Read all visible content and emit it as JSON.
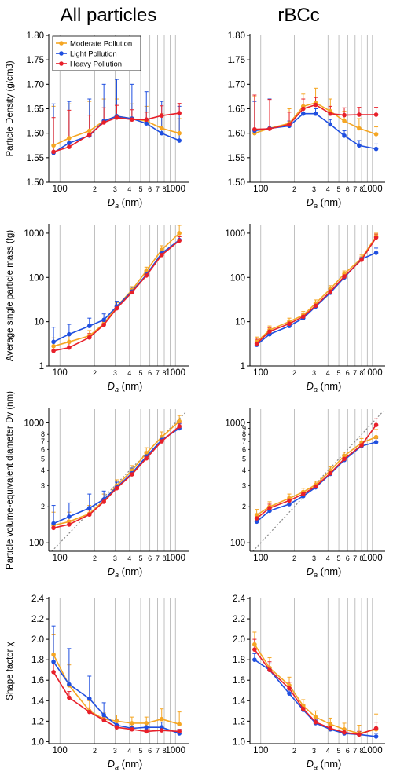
{
  "column_titles": [
    "All particles",
    "rBCc"
  ],
  "colors": {
    "Moderate Pollution": "#f5a623",
    "Light Pollution": "#1f4fe0",
    "Heavy Pollution": "#e8202a",
    "gridline": "#b0b0b0",
    "one_to_one": "#888888"
  },
  "legend": [
    "Moderate Pollution",
    "Light Pollution",
    "Heavy Pollution"
  ],
  "xlabel": "Da (nm)",
  "chart_data": [
    {
      "panel": "A1",
      "column": "All particles",
      "type": "line",
      "ylabel": "Particle Density (g/cm3)",
      "yscale": "linear",
      "ylim": [
        1.5,
        1.8
      ],
      "yticks": [
        1.5,
        1.55,
        1.6,
        1.65,
        1.7,
        1.75,
        1.8
      ],
      "xscale": "log",
      "xlim": [
        80,
        1300
      ],
      "x": [
        88,
        120,
        180,
        240,
        310,
        420,
        560,
        760,
        1080
      ],
      "legend_position": "top-left",
      "series": [
        {
          "name": "Moderate Pollution",
          "values": [
            1.575,
            1.59,
            1.605,
            1.625,
            1.635,
            1.63,
            1.625,
            1.61,
            1.6
          ],
          "err": [
            0.08,
            0.07,
            0.06,
            0.045,
            0.035,
            0.03,
            0.03,
            0.03,
            0.03
          ]
        },
        {
          "name": "Light Pollution",
          "values": [
            1.56,
            1.58,
            1.595,
            1.625,
            1.635,
            1.63,
            1.62,
            1.6,
            1.585
          ],
          "err": [
            0.1,
            0.085,
            0.075,
            0.075,
            0.075,
            0.07,
            0.065,
            0.065,
            0.07
          ]
        },
        {
          "name": "Heavy Pollution",
          "values": [
            1.562,
            1.572,
            1.597,
            1.622,
            1.632,
            1.628,
            1.628,
            1.636,
            1.641
          ],
          "err": [
            0.07,
            0.075,
            0.04,
            0.03,
            0.025,
            0.02,
            0.015,
            0.02,
            0.02
          ]
        }
      ]
    },
    {
      "panel": "B1",
      "column": "rBCc",
      "type": "line",
      "ylabel": "",
      "yscale": "linear",
      "ylim": [
        1.5,
        1.8
      ],
      "yticks": [
        1.5,
        1.55,
        1.6,
        1.65,
        1.7,
        1.75,
        1.8
      ],
      "xscale": "log",
      "xlim": [
        80,
        1300
      ],
      "x": [
        88,
        120,
        180,
        240,
        310,
        420,
        560,
        760,
        1080
      ],
      "series": [
        {
          "name": "Moderate Pollution",
          "values": [
            1.6,
            1.61,
            1.62,
            1.655,
            1.662,
            1.645,
            1.625,
            1.61,
            1.598
          ],
          "err": [
            0.075,
            0.06,
            0.03,
            0.025,
            0.03,
            0.025,
            0.02,
            0.02,
            0.015
          ]
        },
        {
          "name": "Light Pollution",
          "values": [
            1.605,
            1.61,
            1.615,
            1.64,
            1.64,
            1.618,
            1.595,
            1.575,
            1.568
          ],
          "err": [
            0.06,
            0.06,
            0.01,
            0.01,
            0.01,
            0.01,
            0.01,
            0.01,
            0.01
          ]
        },
        {
          "name": "Heavy Pollution",
          "values": [
            1.608,
            1.609,
            1.618,
            1.65,
            1.658,
            1.64,
            1.637,
            1.638,
            1.638
          ],
          "err": [
            0.07,
            0.06,
            0.025,
            0.02,
            0.015,
            0.015,
            0.015,
            0.015,
            0.015
          ]
        }
      ]
    },
    {
      "panel": "A2",
      "column": "All particles",
      "type": "line",
      "ylabel": "Average single particle mass (fg)",
      "yscale": "log",
      "ylim": [
        1,
        1500
      ],
      "yticks": [
        1,
        10,
        100,
        1000
      ],
      "xscale": "log",
      "xlim": [
        80,
        1300
      ],
      "x": [
        88,
        120,
        180,
        240,
        310,
        420,
        560,
        760,
        1080
      ],
      "series": [
        {
          "name": "Moderate Pollution",
          "values": [
            2.8,
            3.5,
            4.8,
            9,
            22,
            52,
            140,
            420,
            1000
          ],
          "err": [
            1.5,
            1.5,
            1.5,
            2,
            5,
            10,
            30,
            100,
            500
          ]
        },
        {
          "name": "Light Pollution",
          "values": [
            3.5,
            5.2,
            8,
            11,
            22,
            48,
            115,
            350,
            700
          ],
          "err": [
            4,
            3.5,
            4,
            4,
            7,
            12,
            25,
            80,
            150
          ]
        },
        {
          "name": "Heavy Pollution",
          "values": [
            2.2,
            2.6,
            4.4,
            8.5,
            20,
            46,
            110,
            320,
            680
          ],
          "err": [
            0.6,
            0.8,
            1,
            1.5,
            4,
            8,
            20,
            60,
            150
          ]
        }
      ]
    },
    {
      "panel": "B2",
      "column": "rBCc",
      "type": "line",
      "ylabel": "",
      "yscale": "log",
      "ylim": [
        1,
        1500
      ],
      "yticks": [
        1,
        10,
        100,
        1000
      ],
      "xscale": "log",
      "xlim": [
        80,
        1300
      ],
      "x": [
        92,
        120,
        180,
        240,
        310,
        420,
        560,
        800,
        1080
      ],
      "series": [
        {
          "name": "Moderate Pollution",
          "values": [
            3.5,
            6.5,
            10,
            14,
            26,
            55,
            120,
            270,
            850
          ],
          "err": [
            1,
            1.5,
            2,
            3,
            5,
            10,
            20,
            50,
            150
          ]
        },
        {
          "name": "Light Pollution",
          "values": [
            3,
            5.2,
            8,
            12,
            22,
            45,
            100,
            260,
            360
          ],
          "err": [
            0.5,
            1,
            1,
            2,
            3,
            5,
            10,
            30,
            100
          ]
        },
        {
          "name": "Heavy Pollution",
          "values": [
            3.2,
            6,
            9,
            13,
            23,
            48,
            105,
            250,
            800
          ],
          "err": [
            0.8,
            1.2,
            1.5,
            2,
            4,
            8,
            15,
            40,
            150
          ]
        }
      ]
    },
    {
      "panel": "A3",
      "column": "All particles",
      "type": "line",
      "ylabel": "Particle volume-equivalent diameter Dv (nm)",
      "yscale": "log",
      "ylim": [
        85,
        1300
      ],
      "yticks": [
        100,
        1000
      ],
      "minor_yticks": [
        2,
        3,
        4,
        5,
        6,
        7,
        8
      ],
      "xscale": "log",
      "xlim": [
        80,
        1300
      ],
      "x": [
        88,
        120,
        180,
        240,
        310,
        420,
        560,
        760,
        1080
      ],
      "reference_line": "1:1 dashed",
      "series": [
        {
          "name": "Moderate Pollution",
          "values": [
            140,
            150,
            175,
            225,
            300,
            400,
            560,
            760,
            1030
          ],
          "err": [
            40,
            30,
            30,
            30,
            35,
            40,
            60,
            80,
            120
          ]
        },
        {
          "name": "Light Pollution",
          "values": [
            145,
            165,
            195,
            230,
            290,
            380,
            525,
            720,
            900
          ],
          "err": [
            60,
            50,
            60,
            40,
            30,
            40,
            50,
            60,
            80
          ]
        },
        {
          "name": "Heavy Pollution",
          "values": [
            133,
            142,
            172,
            220,
            285,
            372,
            505,
            700,
            935
          ],
          "err": [
            10,
            12,
            15,
            15,
            15,
            20,
            25,
            40,
            60
          ]
        }
      ]
    },
    {
      "panel": "B3",
      "column": "rBCc",
      "type": "line",
      "ylabel": "",
      "yscale": "log",
      "ylim": [
        85,
        1300
      ],
      "yticks": [
        100,
        1000
      ],
      "minor_yticks": [
        2,
        3,
        4,
        5,
        6,
        7,
        8,
        9
      ],
      "xscale": "log",
      "xlim": [
        80,
        1300
      ],
      "x": [
        92,
        120,
        180,
        240,
        310,
        420,
        560,
        800,
        1080
      ],
      "reference_line": "1:1 dashed",
      "series": [
        {
          "name": "Moderate Pollution",
          "values": [
            170,
            200,
            235,
            265,
            305,
            400,
            530,
            680,
            760
          ],
          "err": [
            20,
            20,
            20,
            20,
            20,
            30,
            40,
            60,
            120
          ]
        },
        {
          "name": "Light Pollution",
          "values": [
            150,
            185,
            210,
            245,
            290,
            375,
            490,
            640,
            690
          ],
          "err": [
            10,
            15,
            15,
            15,
            15,
            20,
            30,
            40,
            50
          ]
        },
        {
          "name": "Heavy Pollution",
          "values": [
            160,
            195,
            225,
            255,
            295,
            380,
            500,
            650,
            960
          ],
          "err": [
            15,
            15,
            15,
            15,
            20,
            25,
            35,
            50,
            120
          ]
        }
      ]
    },
    {
      "panel": "A4",
      "column": "All particles",
      "type": "line",
      "ylabel": "Shape factor χ",
      "yscale": "linear",
      "ylim": [
        0.98,
        2.4
      ],
      "yticks": [
        1.0,
        1.2,
        1.4,
        1.6,
        1.8,
        2.0,
        2.2,
        2.4
      ],
      "xscale": "log",
      "xlim": [
        80,
        1300
      ],
      "x": [
        88,
        120,
        180,
        240,
        310,
        420,
        560,
        760,
        1080
      ],
      "series": [
        {
          "name": "Moderate Pollution",
          "values": [
            1.85,
            1.55,
            1.3,
            1.22,
            1.2,
            1.18,
            1.18,
            1.22,
            1.17
          ],
          "err": [
            0.2,
            0.2,
            0.1,
            0.06,
            0.06,
            0.06,
            0.06,
            0.1,
            0.12
          ]
        },
        {
          "name": "Light Pollution",
          "values": [
            1.78,
            1.56,
            1.42,
            1.26,
            1.16,
            1.13,
            1.14,
            1.14,
            1.08
          ],
          "err": [
            0.35,
            0.35,
            0.22,
            0.12,
            0.06,
            0.05,
            0.05,
            0.05,
            0.04
          ]
        },
        {
          "name": "Heavy Pollution",
          "values": [
            1.68,
            1.43,
            1.29,
            1.21,
            1.14,
            1.12,
            1.1,
            1.11,
            1.1
          ],
          "err": [
            0.08,
            0.06,
            0.04,
            0.03,
            0.03,
            0.03,
            0.02,
            0.02,
            0.02
          ]
        }
      ]
    },
    {
      "panel": "B4",
      "column": "rBCc",
      "type": "line",
      "ylabel": "",
      "yscale": "linear",
      "ylim": [
        0.98,
        2.4
      ],
      "yticks": [
        1.0,
        1.2,
        1.4,
        1.6,
        1.8,
        2.0,
        2.2,
        2.4
      ],
      "xscale": "log",
      "xlim": [
        80,
        1300
      ],
      "x": [
        88,
        120,
        180,
        240,
        310,
        420,
        560,
        760,
        1080
      ],
      "series": [
        {
          "name": "Moderate Pollution",
          "values": [
            1.95,
            1.72,
            1.55,
            1.35,
            1.24,
            1.17,
            1.12,
            1.08,
            1.12
          ],
          "err": [
            0.12,
            0.1,
            0.08,
            0.06,
            0.06,
            0.06,
            0.06,
            0.08,
            0.15
          ]
        },
        {
          "name": "Light Pollution",
          "values": [
            1.8,
            1.7,
            1.47,
            1.31,
            1.18,
            1.12,
            1.08,
            1.07,
            1.05
          ],
          "err": [
            0.06,
            0.06,
            0.04,
            0.03,
            0.03,
            0.03,
            0.03,
            0.03,
            0.03
          ]
        },
        {
          "name": "Heavy Pollution",
          "values": [
            1.9,
            1.7,
            1.52,
            1.32,
            1.19,
            1.13,
            1.09,
            1.07,
            1.13
          ],
          "err": [
            0.1,
            0.08,
            0.06,
            0.04,
            0.03,
            0.03,
            0.03,
            0.03,
            0.06
          ]
        }
      ]
    }
  ]
}
